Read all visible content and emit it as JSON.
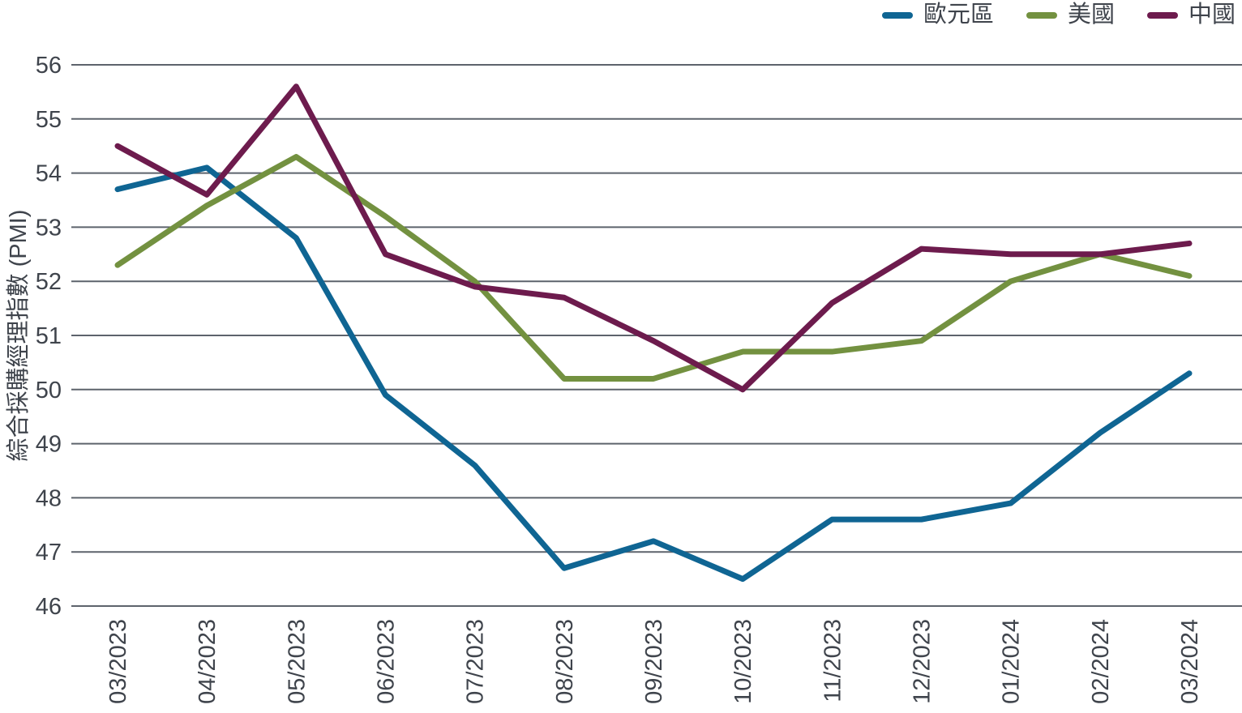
{
  "chart_data": {
    "type": "line",
    "title": "",
    "xlabel": "",
    "ylabel": "綜合採購經理指數 (PMI)",
    "ylim": [
      46,
      56
    ],
    "ytick_step": 1,
    "yticks": [
      46,
      47,
      48,
      49,
      50,
      51,
      52,
      53,
      54,
      55,
      56
    ],
    "grid": true,
    "legend_position": "top-right",
    "categories": [
      "03/2023",
      "04/2023",
      "05/2023",
      "06/2023",
      "07/2023",
      "08/2023",
      "09/2023",
      "10/2023",
      "11/2023",
      "12/2023",
      "01/2024",
      "02/2024",
      "03/2024"
    ],
    "series": [
      {
        "id": "eurozone",
        "name": "歐元區",
        "color": "#0f6593",
        "values": [
          53.7,
          54.1,
          52.8,
          49.9,
          48.6,
          46.7,
          47.2,
          46.5,
          47.6,
          47.6,
          47.9,
          49.2,
          50.3
        ]
      },
      {
        "id": "us",
        "name": "美國",
        "color": "#739140",
        "values": [
          52.3,
          53.4,
          54.3,
          53.2,
          52.0,
          50.2,
          50.2,
          50.7,
          50.7,
          50.9,
          52.0,
          52.5,
          52.1
        ]
      },
      {
        "id": "china",
        "name": "中國",
        "color": "#6d1b4d",
        "values": [
          54.5,
          53.6,
          55.6,
          52.5,
          51.9,
          51.7,
          50.9,
          50.0,
          51.6,
          52.6,
          52.5,
          52.5,
          52.7
        ]
      }
    ]
  },
  "colors": {
    "text": "#3f444c",
    "grid": "#5d636c",
    "background": "#ffffff"
  }
}
